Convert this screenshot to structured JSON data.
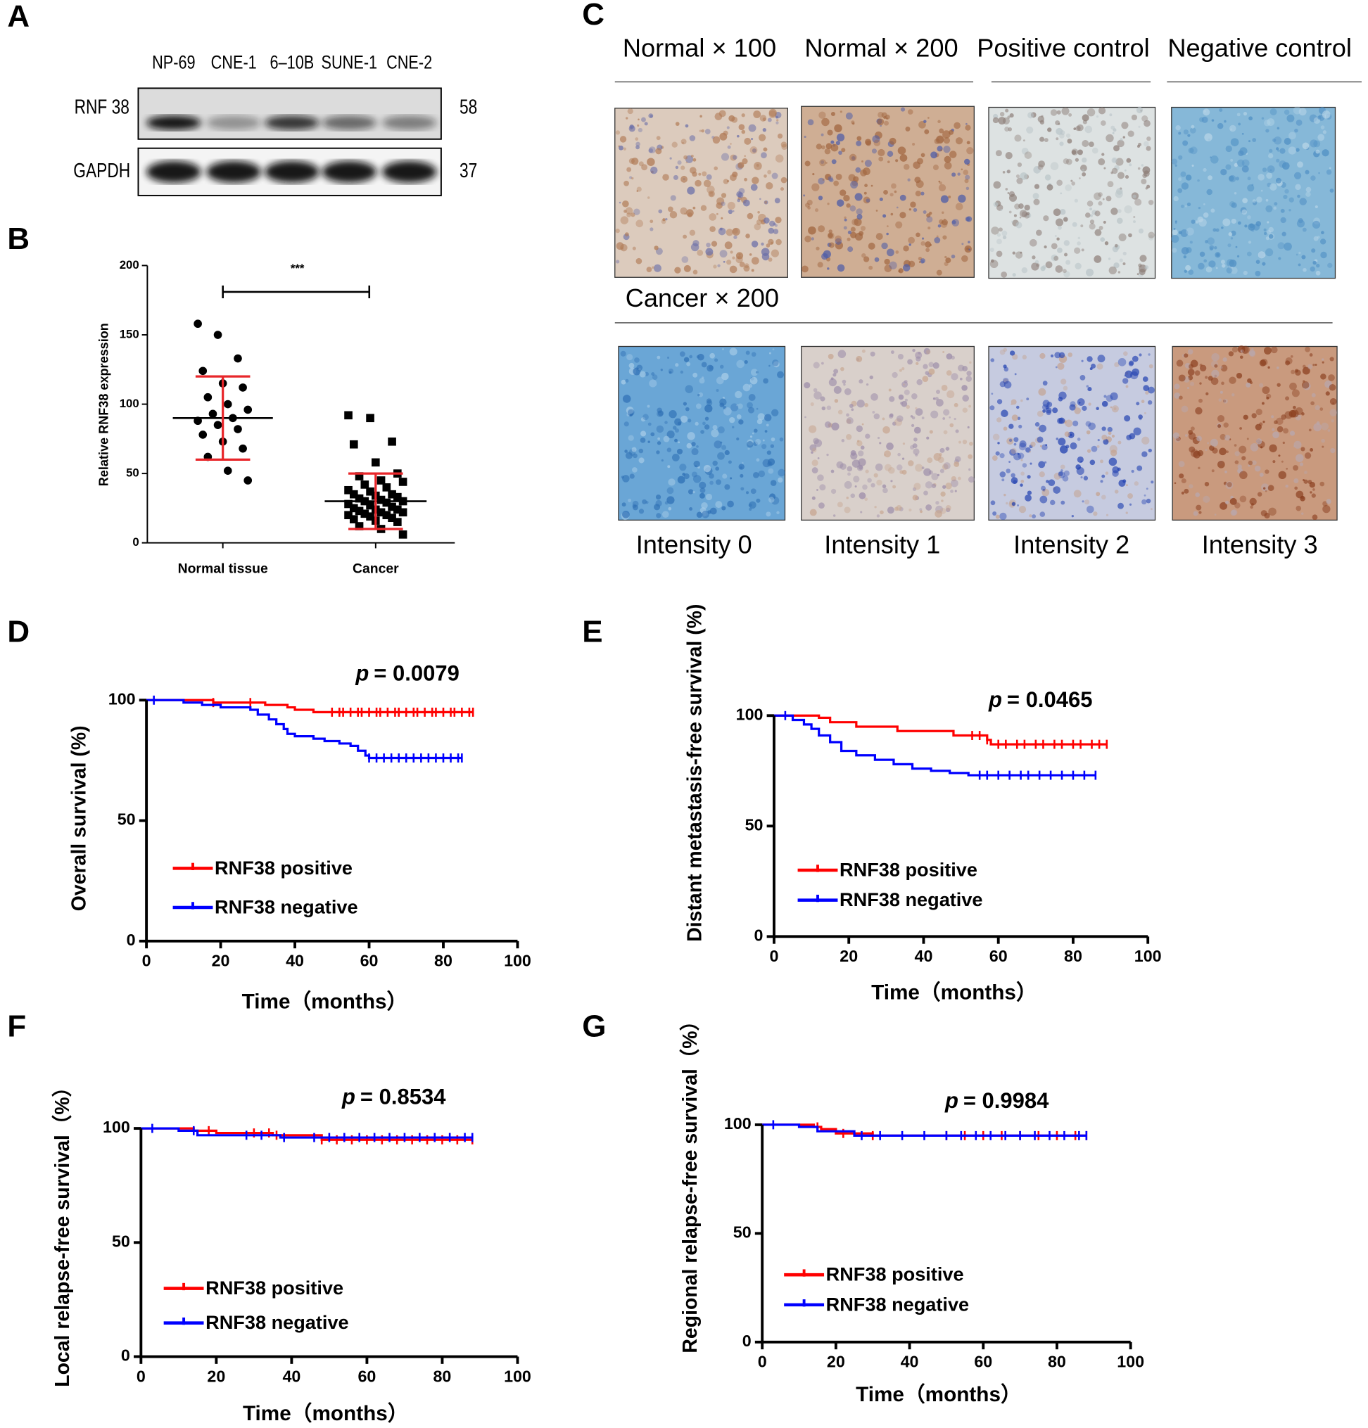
{
  "panel_labels": [
    "A",
    "B",
    "C",
    "D",
    "E",
    "F",
    "G"
  ],
  "blot": {
    "lanes": [
      "NP-69",
      "CNE-1",
      "6–10B",
      "SUNE-1",
      "CNE-2"
    ],
    "rows": [
      {
        "label": "RNF 38",
        "size": 58
      },
      {
        "label": "GAPDH",
        "size": 37
      }
    ]
  },
  "ihc": {
    "top_labels": [
      "Normal × 100",
      "Normal × 200",
      "Positive control",
      "Negative control"
    ],
    "bottom_title": "Cancer × 200",
    "intensity_labels": [
      "Intensity 0",
      "Intensity 1",
      "Intensity 2",
      "Intensity 3"
    ]
  },
  "chart_data": [
    {
      "type": "dot",
      "categories": [
        "Normal tissue",
        "Cancer"
      ],
      "y_label": "Relative RNF38 expression",
      "significance": "***",
      "ylim": [
        0,
        200
      ],
      "yticks": [
        0,
        50,
        100,
        150,
        200
      ],
      "point_color": "#000000",
      "error_color": "#e8262a",
      "markers": [
        "circle",
        "square"
      ],
      "values": [
        [
          158,
          150,
          133,
          124,
          115,
          112,
          105,
          100,
          96,
          93,
          90,
          88,
          85,
          82,
          78,
          73,
          68,
          62,
          52,
          45
        ],
        [
          92,
          90,
          73,
          71,
          58,
          50,
          48,
          45,
          44,
          42,
          40,
          38,
          37,
          35,
          35,
          34,
          33,
          32,
          31,
          30,
          30,
          29,
          28,
          27,
          26,
          25,
          24,
          24,
          23,
          22,
          22,
          21,
          20,
          20,
          19,
          18,
          17,
          16,
          15,
          12,
          10,
          6
        ]
      ],
      "means": [
        90,
        30
      ],
      "sd": [
        30,
        20
      ]
    },
    {
      "type": "km",
      "y_label": "Overall survival (%)",
      "x_label": "Time（months）",
      "p_symbol": "p",
      "p_text": "= 0.0079",
      "xlim": [
        0,
        100
      ],
      "xticks": [
        0,
        20,
        40,
        60,
        80,
        100
      ],
      "ylim": [
        0,
        100
      ],
      "yticks": [
        0,
        50,
        100
      ],
      "series": [
        {
          "name": "RNF38 positive",
          "color": "#ff0000",
          "x": [
            0,
            18,
            32,
            38,
            40,
            45
          ],
          "values": [
            100,
            99,
            98,
            97,
            96,
            95
          ],
          "censored": [
            18,
            28,
            50,
            52,
            53,
            55,
            57,
            58,
            60,
            62,
            63,
            65,
            67,
            68,
            70,
            72,
            73,
            75,
            77,
            78,
            80,
            82,
            83,
            85,
            87,
            88
          ]
        },
        {
          "name": "RNF38 negative",
          "color": "#0000ff",
          "x": [
            0,
            10,
            15,
            20,
            28,
            30,
            33,
            35,
            37,
            38,
            40,
            45,
            48,
            52,
            55,
            57,
            59,
            60
          ],
          "values": [
            100,
            99,
            98,
            97,
            96,
            94,
            92,
            90,
            88,
            86,
            85,
            84,
            83,
            82,
            81,
            79,
            77,
            76
          ],
          "censored": [
            2,
            60,
            62,
            64,
            66,
            68,
            70,
            72,
            74,
            76,
            78,
            80,
            82,
            84,
            85
          ]
        }
      ]
    },
    {
      "type": "km",
      "y_label": "Distant metastasis-free survival (%)",
      "x_label": "Time（months）",
      "p_symbol": "p",
      "p_text": "= 0.0465",
      "xlim": [
        0,
        100
      ],
      "xticks": [
        0,
        20,
        40,
        60,
        80,
        100
      ],
      "ylim": [
        0,
        100
      ],
      "yticks": [
        0,
        50,
        100
      ],
      "series": [
        {
          "name": "RNF38 positive",
          "color": "#ff0000",
          "x": [
            0,
            12,
            15,
            22,
            33,
            48,
            57,
            58
          ],
          "values": [
            100,
            99,
            97,
            95,
            93,
            91,
            89,
            87
          ],
          "censored": [
            53,
            55,
            57,
            60,
            62,
            65,
            67,
            70,
            72,
            75,
            77,
            80,
            82,
            85,
            87,
            89
          ]
        },
        {
          "name": "RNF38 negative",
          "color": "#0000ff",
          "x": [
            0,
            5,
            8,
            10,
            12,
            15,
            18,
            22,
            27,
            32,
            37,
            42,
            47,
            52
          ],
          "values": [
            100,
            98,
            96,
            94,
            91,
            88,
            84,
            82,
            80,
            78,
            76,
            75,
            74,
            73
          ],
          "censored": [
            3,
            55,
            57,
            60,
            63,
            66,
            68,
            71,
            74,
            77,
            80,
            83,
            86
          ]
        }
      ]
    },
    {
      "type": "km",
      "y_label": "Local relapse-free survival（%）",
      "x_label": "Time（months）",
      "p_symbol": "p",
      "p_text": "= 0.8534",
      "xlim": [
        0,
        100
      ],
      "xticks": [
        0,
        20,
        40,
        60,
        80,
        100
      ],
      "ylim": [
        0,
        100
      ],
      "yticks": [
        0,
        50,
        100
      ],
      "series": [
        {
          "name": "RNF38 positive",
          "color": "#ff0000",
          "x": [
            0,
            14,
            20,
            35,
            48
          ],
          "values": [
            100,
            99,
            98,
            97,
            95
          ],
          "censored": [
            18,
            30,
            34,
            36,
            48,
            52,
            56,
            60,
            64,
            68,
            72,
            76,
            80,
            84,
            88
          ]
        },
        {
          "name": "RNF38 negative",
          "color": "#0000ff",
          "x": [
            0,
            10,
            15,
            37
          ],
          "values": [
            100,
            99,
            97,
            96
          ],
          "censored": [
            3,
            14,
            28,
            32,
            38,
            46,
            50,
            54,
            58,
            62,
            66,
            70,
            74,
            78,
            82,
            86,
            88
          ]
        }
      ]
    },
    {
      "type": "km",
      "y_label": "Regional relapse-free survival（%）",
      "x_label": "Time（months）",
      "p_symbol": "p",
      "p_text": "= 0.9984",
      "xlim": [
        0,
        100
      ],
      "xticks": [
        0,
        20,
        40,
        60,
        80,
        100
      ],
      "ylim": [
        0,
        100
      ],
      "yticks": [
        0,
        50,
        100
      ],
      "series": [
        {
          "name": "RNF38 positive",
          "color": "#ff0000",
          "x": [
            0,
            14,
            16,
            20,
            30
          ],
          "values": [
            100,
            99,
            98,
            96,
            95
          ],
          "censored": [
            15,
            22,
            30,
            50,
            55,
            60,
            65,
            70,
            75,
            80,
            85,
            88
          ]
        },
        {
          "name": "RNF38 negative",
          "color": "#0000ff",
          "x": [
            0,
            10,
            15,
            25
          ],
          "values": [
            100,
            99,
            97,
            95
          ],
          "censored": [
            3,
            27,
            32,
            38,
            44,
            50,
            54,
            58,
            62,
            66,
            70,
            74,
            78,
            82,
            86,
            88
          ]
        }
      ]
    }
  ]
}
